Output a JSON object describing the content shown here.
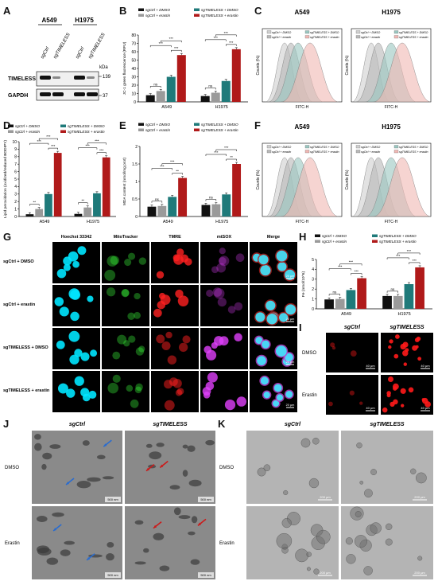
{
  "panels": [
    "A",
    "B",
    "C",
    "D",
    "E",
    "F",
    "G",
    "H",
    "I",
    "J",
    "K"
  ],
  "panelA": {
    "cell_lines": [
      "A549",
      "H1975"
    ],
    "lanes": [
      "sgCtrl",
      "sgTIMELESS",
      "sgCtrl",
      "sgTIMELESS"
    ],
    "kda_label": "kDa",
    "proteins": [
      "TIMELESS",
      "GAPDH"
    ],
    "markers": [
      "139",
      "37"
    ]
  },
  "legend4": {
    "items": [
      "sgCtrl + DMSO",
      "sgCtrl + erastin",
      "sgTIMELESS + DMSO",
      "sgTIMELESS + erastin"
    ],
    "colors": [
      "#111111",
      "#9a9a9a",
      "#1f7a7a",
      "#b01a1a"
    ]
  },
  "sig": {
    "three": "***",
    "two": "**",
    "ns": "ns"
  },
  "chart_data": [
    {
      "type": "bar",
      "panel": "B",
      "categories": [
        "A549",
        "H1975"
      ],
      "ylabel": "JC-1 green fluorescence (RFU)",
      "ylim": [
        0,
        80
      ],
      "yticks": [
        0,
        10,
        20,
        30,
        40,
        50,
        60,
        70,
        80
      ],
      "series": [
        {
          "name": "sgCtrl + DMSO",
          "values": [
            8,
            7
          ]
        },
        {
          "name": "sgCtrl + erastin",
          "values": [
            13,
            11
          ]
        },
        {
          "name": "sgTIMELESS + DMSO",
          "values": [
            30,
            25
          ]
        },
        {
          "name": "sgTIMELESS + erastin",
          "values": [
            56,
            63
          ]
        }
      ]
    },
    {
      "type": "bar",
      "panel": "D",
      "categories": [
        "A549",
        "H1975"
      ],
      "ylabel": "Lipid peroxidation (oxidized/reduced BODIPY)",
      "ylim": [
        0,
        10
      ],
      "yticks": [
        0,
        1,
        2,
        3,
        4,
        5,
        6,
        7,
        8,
        9,
        10
      ],
      "series": [
        {
          "name": "sgCtrl + DMSO",
          "values": [
            0.3,
            0.35
          ]
        },
        {
          "name": "sgCtrl + erastin",
          "values": [
            1.0,
            1.2
          ]
        },
        {
          "name": "sgTIMELESS + DMSO",
          "values": [
            3.0,
            3.1
          ]
        },
        {
          "name": "sgTIMELESS + erastin",
          "values": [
            8.5,
            7.9
          ]
        }
      ]
    },
    {
      "type": "bar",
      "panel": "E",
      "categories": [
        "A549",
        "H1975"
      ],
      "ylabel": "MDA content (nmol/mg prot)",
      "ylim": [
        0,
        2.0
      ],
      "yticks": [
        0,
        0.5,
        1.0,
        1.5,
        2.0
      ],
      "series": [
        {
          "name": "sgCtrl + DMSO",
          "values": [
            0.28,
            0.33
          ]
        },
        {
          "name": "sgCtrl + erastin",
          "values": [
            0.3,
            0.35
          ]
        },
        {
          "name": "sgTIMELESS + DMSO",
          "values": [
            0.56,
            0.63
          ]
        },
        {
          "name": "sgTIMELESS + erastin",
          "values": [
            1.1,
            1.5
          ]
        }
      ]
    },
    {
      "type": "bar",
      "panel": "H",
      "categories": [
        "A549",
        "H1975"
      ],
      "ylabel": "Fe (nmol/10^6)",
      "ylim": [
        0,
        5
      ],
      "yticks": [
        0,
        1,
        2,
        3,
        4,
        5
      ],
      "series": [
        {
          "name": "sgCtrl + DMSO",
          "values": [
            0.95,
            1.3
          ]
        },
        {
          "name": "sgCtrl + erastin",
          "values": [
            1.0,
            1.3
          ]
        },
        {
          "name": "sgTIMELESS + DMSO",
          "values": [
            1.9,
            2.5
          ]
        },
        {
          "name": "sgTIMELESS + erastin",
          "values": [
            3.1,
            4.2
          ]
        }
      ]
    }
  ],
  "flow": {
    "xlabel": "FITC-H",
    "ylabel": "Counts (%)",
    "C_titles": [
      "A549",
      "H1975"
    ],
    "F_titles": [
      "A549",
      "H1975"
    ]
  },
  "panelG": {
    "columns": [
      "Hoechst 33342",
      "MitoTracker",
      "TMRE",
      "mtSOX",
      "Merge"
    ],
    "rows": [
      "sgCtrl + DMSO",
      "sgCtrl + erastin",
      "sgTIMELESS + DMSO",
      "sgTIMELESS + erastin"
    ],
    "scale": "20 μm"
  },
  "panelI": {
    "columns": [
      "sgCtrl",
      "sgTIMELESS"
    ],
    "rows": [
      "DMSO",
      "Erastin"
    ],
    "scale": "40 μm"
  },
  "panelJ": {
    "columns": [
      "sgCtrl",
      "sgTIMELESS"
    ],
    "rows": [
      "DMSO",
      "Erastin"
    ],
    "scale": "500 nm"
  },
  "panelK": {
    "columns": [
      "sgCtrl",
      "sgTIMELESS"
    ],
    "rows": [
      "DMSO",
      "Erastin"
    ],
    "scale": "200 μm"
  }
}
